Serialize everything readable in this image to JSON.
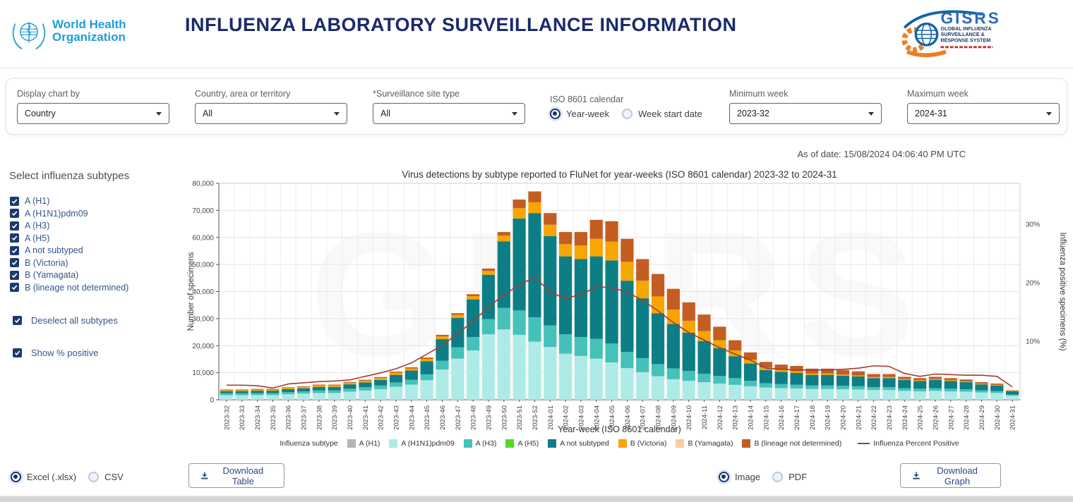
{
  "header": {
    "who_logo_line1": "World Health",
    "who_logo_line2": "Organization",
    "title": "INFLUENZA LABORATORY SURVEILLANCE INFORMATION",
    "gisrs": {
      "acronym": "GISRS",
      "sub_lines": [
        "GLOBAL INFLUENZA",
        "SURVEILLANCE &",
        "RESPONSE SYSTEM"
      ],
      "brand_blue": "#2b6cb8",
      "brand_navy": "#1a3668",
      "brand_orange": "#ee7e23",
      "tagline_color": "#c62f2f"
    }
  },
  "filters": {
    "fields": [
      {
        "label": "Display chart by",
        "value": "Country"
      },
      {
        "label": "Country, area or territory",
        "value": "All"
      },
      {
        "label": "*Surveillance site type",
        "value": "All"
      }
    ],
    "calendar": {
      "label": "ISO 8601 calendar",
      "options": [
        {
          "label": "Year-week",
          "selected": true
        },
        {
          "label": "Week start date",
          "selected": false
        }
      ]
    },
    "week_fields": [
      {
        "label": "Minimum week",
        "value": "2023-32"
      },
      {
        "label": "Maximum week",
        "value": "2024-31"
      }
    ]
  },
  "as_of": "As of date: 15/08/2024 04:06:40 PM UTC",
  "sidebar": {
    "heading": "Select influenza subtypes",
    "subtypes": [
      "A (H1)",
      "A (H1N1)pdm09",
      "A (H3)",
      "A (H5)",
      "A not subtyped",
      "B (Victoria)",
      "B (Yamagata)",
      "B (lineage not determined)"
    ],
    "all_checked": true,
    "deselect_all_label": "Deselect all subtypes",
    "deselect_all_checked": true,
    "show_percent_label": "Show % positive",
    "show_percent_checked": true
  },
  "chart_data": {
    "type": "bar",
    "stacked": true,
    "title": "Virus detections by subtype reported to FluNet for year-weeks (ISO 8601 calendar) 2023-32 to 2024-31",
    "xlabel": "Year-week (ISO 8601 calendar)",
    "ylabel_left": "Number of specimens",
    "ylabel_right": "Influenza positive specimens (%)",
    "ylim_left": [
      0,
      80000
    ],
    "yticks_left": [
      0,
      10000,
      20000,
      30000,
      40000,
      50000,
      60000,
      70000,
      80000
    ],
    "ylim_right": [
      0,
      37
    ],
    "yticks_right": [
      10,
      20,
      30
    ],
    "grid": true,
    "legend_title": "Influenza subtype",
    "legend_position": "bottom",
    "watermark": "GISRS",
    "categories": [
      "2023-32",
      "2023-33",
      "2023-34",
      "2023-35",
      "2023-36",
      "2023-37",
      "2023-38",
      "2023-39",
      "2023-40",
      "2023-41",
      "2023-42",
      "2023-43",
      "2023-44",
      "2023-45",
      "2023-46",
      "2023-47",
      "2023-48",
      "2023-49",
      "2023-50",
      "2023-51",
      "2023-52",
      "2024-01",
      "2024-02",
      "2024-03",
      "2024-04",
      "2024-05",
      "2024-06",
      "2024-07",
      "2024-08",
      "2024-09",
      "2024-10",
      "2024-11",
      "2024-12",
      "2024-13",
      "2024-14",
      "2024-15",
      "2024-16",
      "2024-17",
      "2024-18",
      "2024-19",
      "2024-20",
      "2024-21",
      "2024-22",
      "2024-23",
      "2024-24",
      "2024-25",
      "2024-26",
      "2024-27",
      "2024-28",
      "2024-29",
      "2024-30",
      "2024-31"
    ],
    "series": [
      {
        "name": "A (H1)",
        "color": "#b5b5b5",
        "values_all": 0
      },
      {
        "name": "A (H1N1)pdm09",
        "color": "#aeeae6",
        "values": [
          1700,
          1700,
          1750,
          1750,
          2050,
          2250,
          2500,
          2500,
          3000,
          3400,
          3900,
          4800,
          5600,
          7200,
          11200,
          15200,
          18200,
          24200,
          26000,
          24000,
          21500,
          19500,
          17000,
          16200,
          15200,
          13800,
          11700,
          10200,
          8700,
          7600,
          7000,
          6500,
          6000,
          5500,
          5000,
          4500,
          4300,
          4200,
          4000,
          4000,
          3900,
          3800,
          3600,
          3600,
          3300,
          3100,
          3300,
          3100,
          3000,
          2700,
          2500,
          1500
        ]
      },
      {
        "name": "A (H3)",
        "color": "#46c1ba",
        "values": [
          700,
          700,
          720,
          720,
          800,
          850,
          950,
          950,
          1100,
          1200,
          1350,
          1600,
          1800,
          2200,
          3200,
          4200,
          5000,
          5600,
          8000,
          9000,
          9000,
          8000,
          7200,
          7000,
          7300,
          7000,
          6000,
          5200,
          4500,
          4000,
          3600,
          3100,
          2800,
          2500,
          2000,
          1600,
          1500,
          1400,
          1300,
          1300,
          1250,
          1200,
          1100,
          1100,
          1000,
          1000,
          1000,
          1000,
          900,
          800,
          700,
          450
        ]
      },
      {
        "name": "A (H5)",
        "color": "#56d926",
        "values_all": 0
      },
      {
        "name": "A not subtyped",
        "color": "#0d7e86",
        "values": [
          800,
          800,
          880,
          880,
          1050,
          1150,
          1300,
          1300,
          1600,
          1800,
          2100,
          2800,
          3400,
          4800,
          8000,
          10900,
          13900,
          16400,
          24500,
          34000,
          38500,
          33000,
          28800,
          28800,
          30500,
          30700,
          26300,
          22100,
          18800,
          16400,
          14200,
          12100,
          10300,
          8100,
          6400,
          4900,
          4500,
          4300,
          3900,
          3900,
          3750,
          3600,
          3300,
          3300,
          3000,
          2800,
          3000,
          2800,
          2600,
          2200,
          2100,
          1200
        ]
      },
      {
        "name": "B (Victoria)",
        "color": "#f7a500",
        "values": [
          350,
          350,
          400,
          400,
          450,
          500,
          550,
          550,
          600,
          650,
          680,
          800,
          800,
          900,
          1000,
          1100,
          1200,
          1400,
          2200,
          3800,
          4000,
          4200,
          4500,
          5000,
          6500,
          7000,
          7000,
          6500,
          6200,
          5300,
          4400,
          3700,
          2900,
          2100,
          1400,
          900,
          700,
          650,
          500,
          500,
          400,
          400,
          400,
          400,
          350,
          350,
          350,
          350,
          300,
          300,
          250,
          150
        ]
      },
      {
        "name": "B (Yamagata)",
        "color": "#f8d09e",
        "values_all": 0
      },
      {
        "name": "B (lineage not determined)",
        "color": "#c45d22",
        "values": [
          250,
          250,
          250,
          250,
          250,
          250,
          300,
          300,
          300,
          350,
          370,
          400,
          400,
          500,
          600,
          600,
          700,
          900,
          1300,
          3200,
          4000,
          4300,
          4500,
          5000,
          7000,
          7500,
          8500,
          8000,
          8300,
          7700,
          6800,
          6100,
          5000,
          3800,
          2700,
          2100,
          2000,
          1950,
          1800,
          1800,
          1700,
          1500,
          1100,
          1100,
          850,
          750,
          850,
          750,
          700,
          500,
          450,
          200
        ]
      }
    ],
    "line": {
      "name": "Influenza Percent Positive",
      "color": "#a43d31",
      "values": [
        2.5,
        2.5,
        2.4,
        2.0,
        2.7,
        2.9,
        3.1,
        3.2,
        3.4,
        4.0,
        4.6,
        5.3,
        6.3,
        7.8,
        9.3,
        11.3,
        13.4,
        15.8,
        18.0,
        19.6,
        21.0,
        18.4,
        17.3,
        18.0,
        19.3,
        19.2,
        18.4,
        17.0,
        15.2,
        13.2,
        11.5,
        10.2,
        8.9,
        7.8,
        6.8,
        5.4,
        5.2,
        5.1,
        5.1,
        5.1,
        5.2,
        5.4,
        5.8,
        5.7,
        4.5,
        4.0,
        4.4,
        4.3,
        4.2,
        4.2,
        4.0,
        2.2
      ]
    }
  },
  "downloads": {
    "table": {
      "options": [
        {
          "label": "Excel (.xlsx)",
          "selected": true
        },
        {
          "label": "CSV",
          "selected": false
        }
      ],
      "button_label": "Download Table"
    },
    "graph": {
      "options": [
        {
          "label": "Image",
          "selected": true
        },
        {
          "label": "PDF",
          "selected": false
        }
      ],
      "button_label": "Download Graph"
    }
  }
}
